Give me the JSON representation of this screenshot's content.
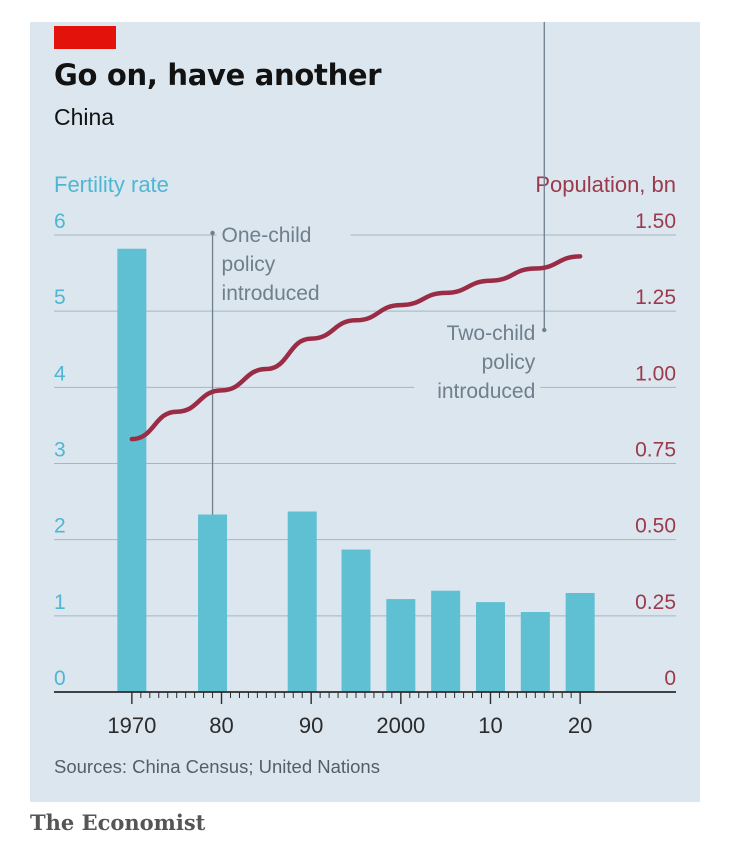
{
  "header": {
    "accent_color": "#e3120b",
    "title": "Go on, have another",
    "subtitle": "China"
  },
  "chart_data": {
    "type": "bar",
    "title": "Go on, have another",
    "subtitle": "China",
    "left_axis": {
      "label": "Fertility rate",
      "ylim": [
        0,
        6
      ],
      "ticks": [
        "0",
        "1",
        "2",
        "3",
        "4",
        "5",
        "6"
      ],
      "color": "#4fb6d3"
    },
    "right_axis": {
      "label": "Population, bn",
      "ylim": [
        0,
        1.5
      ],
      "ticks": [
        "0",
        "0.25",
        "0.50",
        "0.75",
        "1.00",
        "1.25",
        "1.50"
      ],
      "color": "#9b3a4d"
    },
    "x_axis": {
      "xlim": [
        1966,
        2024
      ],
      "tick_labels": [
        {
          "x": 1970,
          "label": "1970"
        },
        {
          "x": 1980,
          "label": "80"
        },
        {
          "x": 1990,
          "label": "90"
        },
        {
          "x": 2000,
          "label": "2000"
        },
        {
          "x": 2010,
          "label": "10"
        },
        {
          "x": 2020,
          "label": "20"
        }
      ]
    },
    "grid": true,
    "series": [
      {
        "name": "Fertility rate",
        "type": "bar",
        "color": "#5fbfd3",
        "x": [
          1970,
          1979,
          1989,
          1995,
          2000,
          2005,
          2010,
          2015,
          2020
        ],
        "values": [
          5.82,
          2.33,
          2.37,
          1.87,
          1.22,
          1.33,
          1.18,
          1.05,
          1.3
        ]
      },
      {
        "name": "Population, bn",
        "type": "line",
        "color": "#9b2c45",
        "x": [
          1970,
          1975,
          1980,
          1985,
          1990,
          1995,
          2000,
          2005,
          2010,
          2015,
          2020
        ],
        "values": [
          0.83,
          0.92,
          0.99,
          1.06,
          1.16,
          1.22,
          1.27,
          1.31,
          1.35,
          1.39,
          1.43
        ]
      }
    ],
    "annotations": [
      {
        "x": 1979,
        "text": [
          "One-child",
          "policy",
          "introduced"
        ]
      },
      {
        "x": 2016,
        "text": [
          "Two-child",
          "policy",
          "introduced"
        ]
      }
    ]
  },
  "footer": {
    "source": "Sources: China Census; United Nations",
    "publisher": "The Economist"
  }
}
